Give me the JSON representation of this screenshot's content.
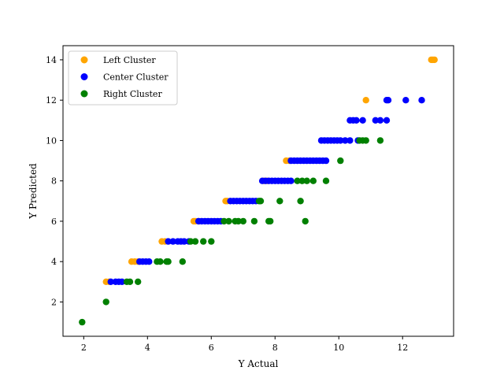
{
  "chart_data": {
    "type": "scatter",
    "xlabel": "Y Actual",
    "ylabel": "Y Predicted",
    "xlim": [
      1.35,
      13.6
    ],
    "ylim": [
      0.3,
      14.7
    ],
    "xticks": [
      2,
      4,
      6,
      8,
      10,
      12
    ],
    "yticks": [
      2,
      4,
      6,
      8,
      10,
      12,
      14
    ],
    "legend_position": "upper-left",
    "series": [
      {
        "name": "Left Cluster",
        "color": "#ffa500",
        "points": [
          [
            2.7,
            3
          ],
          [
            2.8,
            3
          ],
          [
            3.5,
            4
          ],
          [
            3.6,
            4
          ],
          [
            3.7,
            4
          ],
          [
            4.45,
            5
          ],
          [
            4.55,
            5
          ],
          [
            5.45,
            6
          ],
          [
            5.5,
            6
          ],
          [
            5.6,
            6
          ],
          [
            6.45,
            7
          ],
          [
            6.5,
            7
          ],
          [
            7.65,
            8
          ],
          [
            7.75,
            8
          ],
          [
            8.35,
            9
          ],
          [
            8.45,
            9
          ],
          [
            10.85,
            12
          ],
          [
            12.9,
            14
          ],
          [
            12.95,
            14
          ],
          [
            13.0,
            14
          ]
        ]
      },
      {
        "name": "Center Cluster",
        "color": "#0000ff",
        "points": [
          [
            2.85,
            3
          ],
          [
            3.0,
            3
          ],
          [
            3.1,
            3
          ],
          [
            3.2,
            3
          ],
          [
            3.75,
            4
          ],
          [
            3.85,
            4
          ],
          [
            3.95,
            4
          ],
          [
            4.05,
            4
          ],
          [
            4.65,
            5
          ],
          [
            4.8,
            5
          ],
          [
            4.95,
            5
          ],
          [
            5.05,
            5
          ],
          [
            5.15,
            5
          ],
          [
            5.3,
            5
          ],
          [
            5.6,
            6
          ],
          [
            5.7,
            6
          ],
          [
            5.8,
            6
          ],
          [
            5.9,
            6
          ],
          [
            6.0,
            6
          ],
          [
            6.1,
            6
          ],
          [
            6.2,
            6
          ],
          [
            6.3,
            6
          ],
          [
            6.6,
            7
          ],
          [
            6.7,
            7
          ],
          [
            6.8,
            7
          ],
          [
            6.9,
            7
          ],
          [
            7.0,
            7
          ],
          [
            7.1,
            7
          ],
          [
            7.2,
            7
          ],
          [
            7.3,
            7
          ],
          [
            7.4,
            7
          ],
          [
            7.6,
            8
          ],
          [
            7.7,
            8
          ],
          [
            7.8,
            8
          ],
          [
            7.9,
            8
          ],
          [
            8.0,
            8
          ],
          [
            8.1,
            8
          ],
          [
            8.2,
            8
          ],
          [
            8.3,
            8
          ],
          [
            8.4,
            8
          ],
          [
            8.5,
            8
          ],
          [
            8.5,
            9
          ],
          [
            8.6,
            9
          ],
          [
            8.7,
            9
          ],
          [
            8.8,
            9
          ],
          [
            8.9,
            9
          ],
          [
            9.0,
            9
          ],
          [
            9.1,
            9
          ],
          [
            9.2,
            9
          ],
          [
            9.3,
            9
          ],
          [
            9.4,
            9
          ],
          [
            9.5,
            9
          ],
          [
            9.6,
            9
          ],
          [
            9.45,
            10
          ],
          [
            9.55,
            10
          ],
          [
            9.65,
            10
          ],
          [
            9.75,
            10
          ],
          [
            9.85,
            10
          ],
          [
            9.95,
            10
          ],
          [
            10.05,
            10
          ],
          [
            10.2,
            10
          ],
          [
            10.35,
            10
          ],
          [
            10.6,
            10
          ],
          [
            10.35,
            11
          ],
          [
            10.45,
            11
          ],
          [
            10.55,
            11
          ],
          [
            10.75,
            11
          ],
          [
            11.15,
            11
          ],
          [
            11.3,
            11
          ],
          [
            11.5,
            11
          ],
          [
            11.5,
            12
          ],
          [
            11.55,
            12
          ],
          [
            12.1,
            12
          ],
          [
            12.6,
            12
          ]
        ]
      },
      {
        "name": "Right Cluster",
        "color": "#008000",
        "points": [
          [
            1.95,
            1
          ],
          [
            2.7,
            2
          ],
          [
            3.35,
            3
          ],
          [
            3.45,
            3
          ],
          [
            3.7,
            3
          ],
          [
            4.3,
            4
          ],
          [
            4.4,
            4
          ],
          [
            4.6,
            4
          ],
          [
            4.65,
            4
          ],
          [
            5.1,
            4
          ],
          [
            5.35,
            5
          ],
          [
            5.5,
            5
          ],
          [
            5.75,
            5
          ],
          [
            6.0,
            5
          ],
          [
            6.4,
            6
          ],
          [
            6.55,
            6
          ],
          [
            6.75,
            6
          ],
          [
            6.85,
            6
          ],
          [
            7.0,
            6
          ],
          [
            7.35,
            6
          ],
          [
            7.8,
            6
          ],
          [
            7.85,
            6
          ],
          [
            8.95,
            6
          ],
          [
            7.5,
            7
          ],
          [
            7.55,
            7
          ],
          [
            8.15,
            7
          ],
          [
            8.8,
            7
          ],
          [
            8.7,
            8
          ],
          [
            8.85,
            8
          ],
          [
            9.0,
            8
          ],
          [
            9.2,
            8
          ],
          [
            9.6,
            8
          ],
          [
            10.05,
            9
          ],
          [
            10.65,
            10
          ],
          [
            10.75,
            10
          ],
          [
            10.85,
            10
          ],
          [
            11.3,
            10
          ]
        ]
      }
    ]
  }
}
